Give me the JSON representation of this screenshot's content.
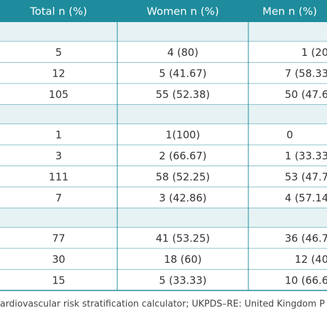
{
  "table": {
    "header": [
      "Total n (%)",
      "Women n (%)",
      "Men n (%)"
    ],
    "groups": [
      {
        "rows": [
          [
            "5",
            "4 (80)",
            "1 (20"
          ],
          [
            "12",
            "5 (41.67)",
            "7 (58.33"
          ],
          [
            "105",
            "55 (52.38)",
            "50 (47.6"
          ]
        ]
      },
      {
        "rows": [
          [
            "1",
            "1(100)",
            "0"
          ],
          [
            "3",
            "2 (66.67)",
            "1 (33.33"
          ],
          [
            "111",
            "58 (52.25)",
            "53 (47.7"
          ],
          [
            "7",
            "3 (42.86)",
            "4 (57.14"
          ]
        ]
      },
      {
        "rows": [
          [
            "77",
            "41 (53.25)",
            "36 (46.7"
          ],
          [
            "30",
            "18 (60)",
            "12 (40"
          ],
          [
            "15",
            "5 (33.33)",
            "10 (66.6"
          ]
        ]
      }
    ],
    "footnote": "ardiovascular risk stratification calculator; UKPDS–RE: United Kingdom P"
  }
}
